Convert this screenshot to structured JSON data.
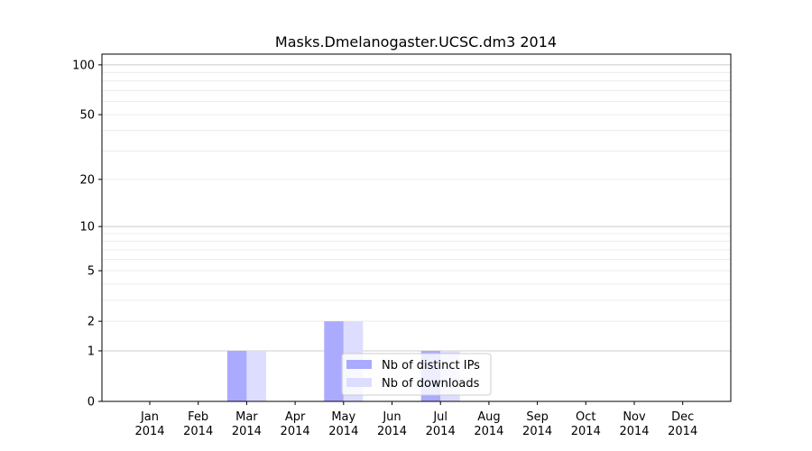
{
  "chart_data": {
    "type": "bar",
    "title": "Masks.Dmelanogaster.UCSC.dm3 2014",
    "xlabel": "",
    "ylabel": "",
    "yscale": "log(1+y)",
    "ylim": [
      0,
      116
    ],
    "yticks": [
      0,
      1,
      2,
      5,
      10,
      20,
      50,
      100
    ],
    "grid": true,
    "legend_position": "lower-center",
    "categories": [
      "Jan\n2014",
      "Feb\n2014",
      "Mar\n2014",
      "Apr\n2014",
      "May\n2014",
      "Jun\n2014",
      "Jul\n2014",
      "Aug\n2014",
      "Sep\n2014",
      "Oct\n2014",
      "Nov\n2014",
      "Dec\n2014"
    ],
    "series": [
      {
        "name": "Nb of distinct IPs",
        "color": "#aaaaff",
        "values": [
          0,
          0,
          1,
          0,
          2,
          0,
          1,
          0,
          0,
          0,
          0,
          0
        ]
      },
      {
        "name": "Nb of downloads",
        "color": "#ddddff",
        "values": [
          0,
          0,
          1,
          0,
          2,
          0,
          1,
          0,
          0,
          0,
          0,
          0
        ]
      }
    ]
  }
}
